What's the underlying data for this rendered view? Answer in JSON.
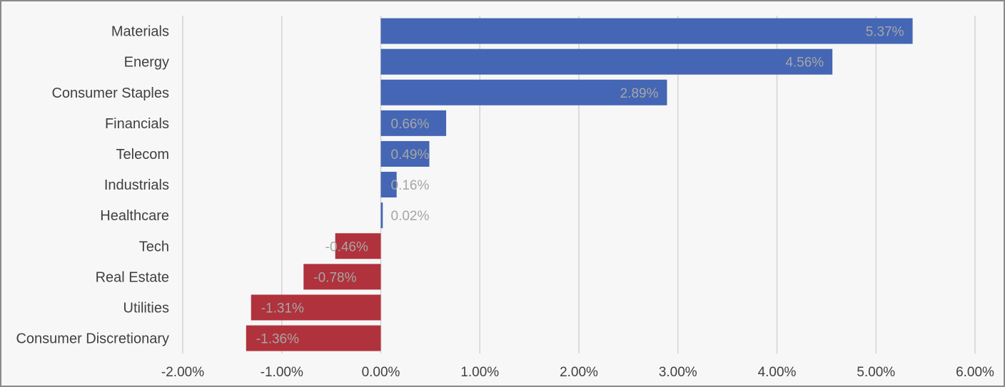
{
  "chart_data": {
    "type": "bar",
    "orientation": "horizontal",
    "categories": [
      "Materials",
      "Energy",
      "Consumer Staples",
      "Financials",
      "Telecom",
      "Industrials",
      "Healthcare",
      "Tech",
      "Real Estate",
      "Utilities",
      "Consumer Discretionary"
    ],
    "values": [
      5.37,
      4.56,
      2.89,
      0.66,
      0.49,
      0.16,
      0.02,
      -0.46,
      -0.78,
      -1.31,
      -1.36
    ],
    "data_labels": [
      "5.37%",
      "4.56%",
      "2.89%",
      "0.66%",
      "0.49%",
      "0.16%",
      "0.02%",
      "-0.46%",
      "-0.78%",
      "-1.31%",
      "-1.36%"
    ],
    "xlim": [
      -2,
      6
    ],
    "x_ticks": [
      -2,
      -1,
      0,
      1,
      2,
      3,
      4,
      5,
      6
    ],
    "x_tick_labels": [
      "-2.00%",
      "-1.00%",
      "0.00%",
      "1.00%",
      "2.00%",
      "3.00%",
      "4.00%",
      "5.00%",
      "6.00%"
    ],
    "grid": true,
    "legend": "none",
    "title": "",
    "colors": {
      "positive": "#4466b4",
      "negative": "#b0323c",
      "background": "#f7f7f7",
      "gridline": "#d4d4d4",
      "label_text": "#404040",
      "data_label_text": "#a6a6a6"
    }
  }
}
